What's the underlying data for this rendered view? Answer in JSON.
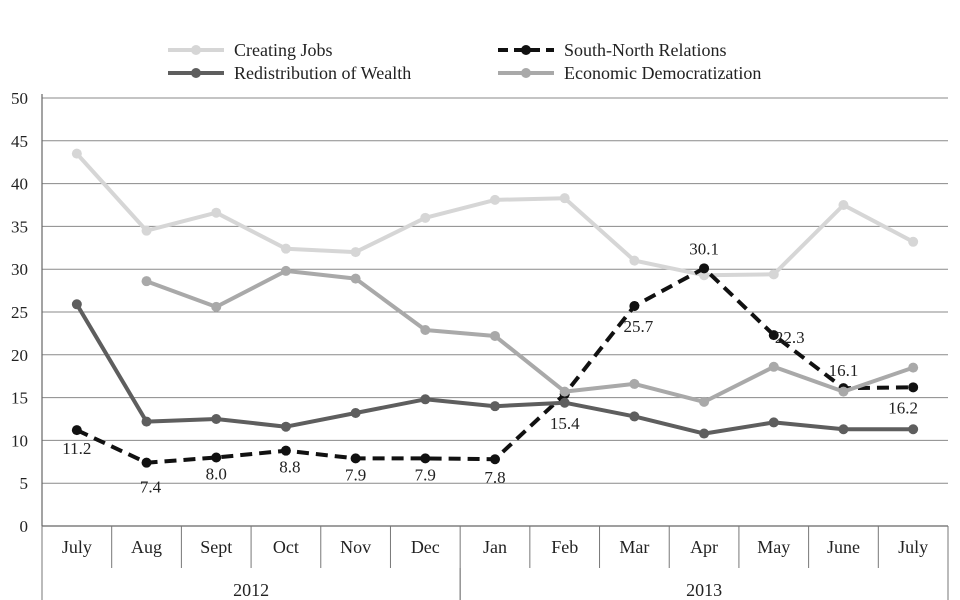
{
  "chart_data": {
    "type": "line",
    "categories": [
      "July",
      "Aug",
      "Sept",
      "Oct",
      "Nov",
      "Dec",
      "Jan",
      "Feb",
      "Mar",
      "Apr",
      "May",
      "June",
      "July"
    ],
    "groups": [
      {
        "label": "2012",
        "span": [
          0,
          5
        ]
      },
      {
        "label": "2013",
        "span": [
          6,
          12
        ]
      }
    ],
    "ylim": [
      0,
      50
    ],
    "yticks": [
      "0",
      "5",
      "10",
      "15",
      "20",
      "25",
      "30",
      "35",
      "40",
      "45",
      "50"
    ],
    "grid": true,
    "legend_position": "top",
    "series": [
      {
        "name": "Creating Jobs",
        "color": "#d6d6d6",
        "style": "solid",
        "values": [
          43.5,
          34.5,
          36.6,
          32.4,
          32.0,
          36.0,
          38.1,
          38.3,
          31.0,
          29.3,
          29.4,
          37.5,
          33.2
        ]
      },
      {
        "name": "South-North Relations",
        "color": "#111111",
        "style": "dashed",
        "values": [
          11.2,
          7.4,
          8.0,
          8.8,
          7.9,
          7.9,
          7.8,
          15.4,
          25.7,
          30.1,
          22.3,
          16.1,
          16.2
        ]
      },
      {
        "name": "Redistribution of Wealth",
        "color": "#5e5e5e",
        "style": "solid",
        "values": [
          25.9,
          12.2,
          12.5,
          11.6,
          13.2,
          14.8,
          14.0,
          14.4,
          12.8,
          10.8,
          12.1,
          11.3,
          11.3
        ]
      },
      {
        "name": "Economic Democratization",
        "color": "#a9a9a9",
        "style": "solid",
        "values": [
          null,
          28.6,
          25.6,
          29.8,
          28.9,
          22.9,
          22.2,
          15.7,
          16.6,
          14.5,
          18.6,
          15.7,
          18.5
        ]
      }
    ],
    "data_labels": [
      "11.2",
      "7.4",
      "8.0",
      "8.8",
      "7.9",
      "7.9",
      "7.8",
      "15.4",
      "25.7",
      "30.1",
      "22.3",
      "16.1",
      "16.2"
    ]
  }
}
